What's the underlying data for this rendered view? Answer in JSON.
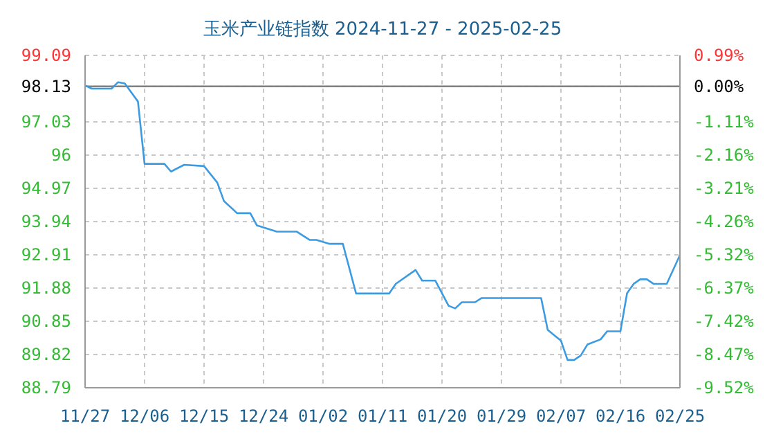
{
  "chart_data": {
    "type": "line",
    "title": "玉米产业链指数 2024-11-27 - 2025-02-25",
    "x": [
      "2024-11-27",
      "2024-11-28",
      "2024-12-01",
      "2024-12-02",
      "2024-12-03",
      "2024-12-05",
      "2024-12-06",
      "2024-12-09",
      "2024-12-10",
      "2024-12-12",
      "2024-12-15",
      "2024-12-17",
      "2024-12-18",
      "2024-12-20",
      "2024-12-22",
      "2024-12-23",
      "2024-12-26",
      "2024-12-29",
      "2024-12-31",
      "2025-01-01",
      "2025-01-03",
      "2025-01-05",
      "2025-01-07",
      "2025-01-12",
      "2025-01-13",
      "2025-01-16",
      "2025-01-17",
      "2025-01-19",
      "2025-01-21",
      "2025-01-22",
      "2025-01-23",
      "2025-01-25",
      "2025-01-26",
      "2025-02-04",
      "2025-02-05",
      "2025-02-07",
      "2025-02-08",
      "2025-02-09",
      "2025-02-10",
      "2025-02-11",
      "2025-02-13",
      "2025-02-14",
      "2025-02-16",
      "2025-02-17",
      "2025-02-18",
      "2025-02-19",
      "2025-02-20",
      "2025-02-21",
      "2025-02-23",
      "2025-02-25"
    ],
    "series": [
      {
        "color": "#3c9be0",
        "values": [
          98.16,
          98.06,
          98.06,
          98.26,
          98.22,
          97.66,
          95.73,
          95.73,
          95.49,
          95.7,
          95.66,
          95.15,
          94.58,
          94.2,
          94.2,
          93.82,
          93.63,
          93.63,
          93.37,
          93.37,
          93.25,
          93.25,
          91.71,
          91.71,
          92.01,
          92.44,
          92.11,
          92.11,
          91.33,
          91.25,
          91.44,
          91.44,
          91.57,
          91.57,
          90.58,
          90.25,
          89.65,
          89.65,
          89.79,
          90.13,
          90.29,
          90.54,
          90.54,
          91.72,
          92.01,
          92.15,
          92.15,
          92.01,
          92.01,
          92.9
        ]
      }
    ],
    "xlim": [
      "2024-11-27",
      "2025-02-25"
    ],
    "xticks": [
      {
        "value": "2024-11-27",
        "label": "11/27"
      },
      {
        "value": "2024-12-06",
        "label": "12/06"
      },
      {
        "value": "2024-12-15",
        "label": "12/15"
      },
      {
        "value": "2024-12-24",
        "label": "12/24"
      },
      {
        "value": "2025-01-02",
        "label": "01/02"
      },
      {
        "value": "2025-01-11",
        "label": "01/11"
      },
      {
        "value": "2025-01-20",
        "label": "01/20"
      },
      {
        "value": "2025-01-29",
        "label": "01/29"
      },
      {
        "value": "2025-02-07",
        "label": "02/07"
      },
      {
        "value": "2025-02-16",
        "label": "02/16"
      },
      {
        "value": "2025-02-25",
        "label": "02/25"
      }
    ],
    "ylim": [
      88.79,
      99.09
    ],
    "yticks": [
      88.79,
      89.82,
      90.85,
      91.88,
      92.91,
      93.94,
      94.97,
      96,
      97.03,
      98.13,
      99.09
    ],
    "y2lim": [
      -9.52,
      0.99
    ],
    "y2ticks": [
      {
        "value": -9.52,
        "label": "-9.52%"
      },
      {
        "value": -8.47,
        "label": "-8.47%"
      },
      {
        "value": -7.42,
        "label": "-7.42%"
      },
      {
        "value": -6.37,
        "label": "-6.37%"
      },
      {
        "value": -5.32,
        "label": "-5.32%"
      },
      {
        "value": -4.26,
        "label": "-4.26%"
      },
      {
        "value": -3.21,
        "label": "-3.21%"
      },
      {
        "value": -2.16,
        "label": "-2.16%"
      },
      {
        "value": -1.11,
        "label": "-1.11%"
      },
      {
        "value": 0,
        "label": "0.00%"
      },
      {
        "value": 0.99,
        "label": "0.99%"
      }
    ],
    "ref_lines": [
      {
        "axis": "y",
        "value": 98.13,
        "color": "#808080"
      }
    ],
    "grid": true,
    "line_style": "solid",
    "marker": "none"
  }
}
